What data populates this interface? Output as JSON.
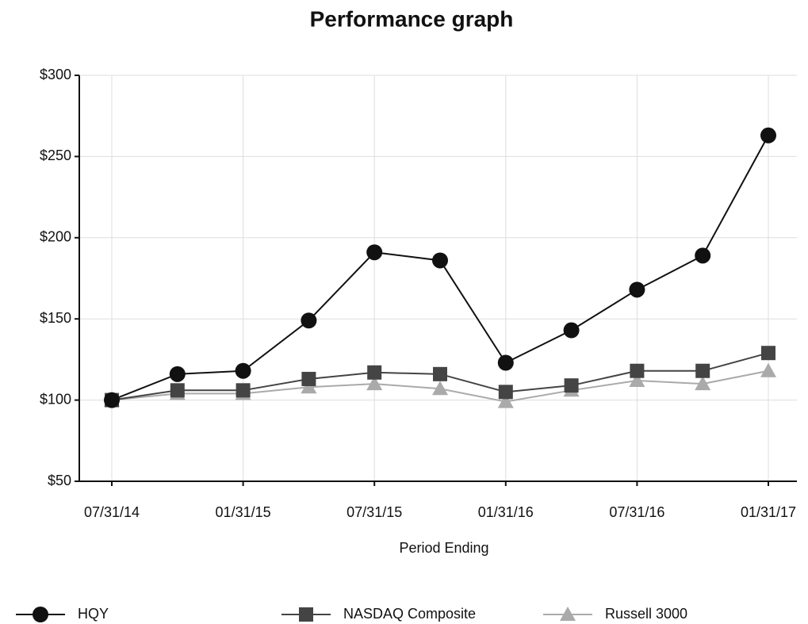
{
  "chart_data": {
    "type": "line",
    "title": "Performance graph",
    "x_label": "Period Ending",
    "categories": [
      "07/31/14",
      null,
      "01/31/15",
      null,
      "07/31/15",
      null,
      "01/31/16",
      null,
      "07/31/16",
      null,
      "01/31/17"
    ],
    "series": [
      {
        "name": "HQY",
        "color": "#111111",
        "marker": "circle",
        "values": [
          100,
          116,
          118,
          149,
          191,
          186,
          123,
          143,
          168,
          189,
          263
        ]
      },
      {
        "name": "NASDAQ Composite",
        "color": "#444444",
        "marker": "square",
        "values": [
          100,
          106,
          106,
          113,
          117,
          116,
          105,
          109,
          118,
          118,
          129
        ]
      },
      {
        "name": "Russell 3000",
        "color": "#aaaaaa",
        "marker": "triangle",
        "values": [
          100,
          104,
          104,
          108,
          110,
          107,
          99,
          106,
          112,
          110,
          118
        ]
      }
    ],
    "ylim": [
      50,
      300
    ],
    "yticks": [
      {
        "value": 50,
        "label": "$50"
      },
      {
        "value": 100,
        "label": "$100"
      },
      {
        "value": 150,
        "label": "$150"
      },
      {
        "value": 200,
        "label": "$200"
      },
      {
        "value": 250,
        "label": "$250"
      },
      {
        "value": 300,
        "label": "$300"
      }
    ],
    "grid": true
  }
}
